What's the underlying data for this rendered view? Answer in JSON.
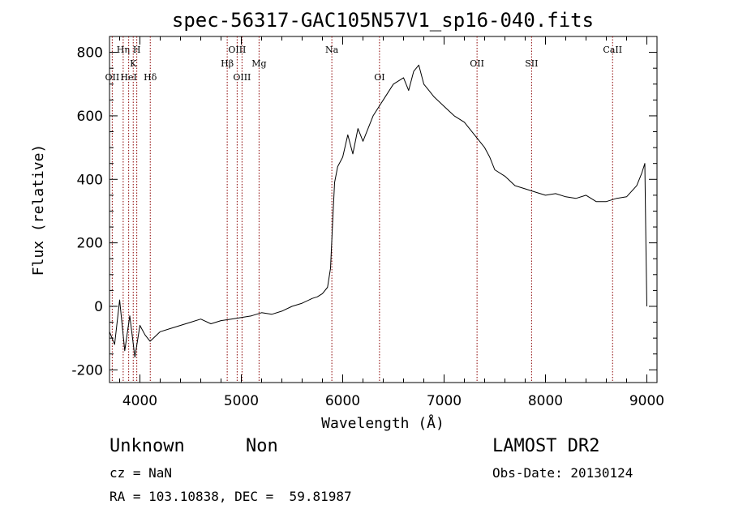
{
  "chart_data": {
    "type": "line",
    "title": "spec-56317-GAC105N57V1_sp16-040.fits",
    "xlabel": "Wavelength (Å)",
    "ylabel": "Flux (relative)",
    "xlim": [
      3700,
      9100
    ],
    "ylim": [
      -240,
      850
    ],
    "xticks": [
      4000,
      5000,
      6000,
      7000,
      8000,
      9000
    ],
    "yticks": [
      -200,
      0,
      200,
      400,
      600,
      800
    ],
    "grid": false,
    "legend": "none",
    "line_color": "#000000",
    "marker_color": "#8b0000",
    "series": [
      {
        "x": [
          3700,
          3750,
          3800,
          3850,
          3900,
          3950,
          4000,
          4050,
          4100,
          4200,
          4300,
          4400,
          4500,
          4600,
          4700,
          4800,
          4900,
          5000,
          5100,
          5200,
          5300,
          5400,
          5500,
          5600,
          5700,
          5750,
          5800,
          5850,
          5880,
          5900,
          5920,
          5950,
          6000,
          6050,
          6100,
          6150,
          6200,
          6300,
          6400,
          6500,
          6600,
          6650,
          6700,
          6750,
          6800,
          6850,
          6900,
          7000,
          7100,
          7200,
          7300,
          7400,
          7450,
          7500,
          7600,
          7700,
          7800,
          7900,
          8000,
          8100,
          8200,
          8300,
          8400,
          8500,
          8600,
          8700,
          8800,
          8900,
          8950,
          8980,
          8990,
          9000
        ],
        "values": [
          -80,
          -120,
          20,
          -140,
          -30,
          -160,
          -60,
          -90,
          -110,
          -80,
          -70,
          -60,
          -50,
          -40,
          -55,
          -45,
          -40,
          -35,
          -30,
          -20,
          -25,
          -15,
          0,
          10,
          25,
          30,
          40,
          60,
          120,
          260,
          390,
          440,
          470,
          540,
          480,
          560,
          520,
          600,
          650,
          700,
          720,
          680,
          740,
          760,
          700,
          680,
          660,
          630,
          600,
          580,
          540,
          500,
          470,
          430,
          410,
          380,
          370,
          360,
          350,
          355,
          345,
          340,
          350,
          330,
          330,
          340,
          345,
          380,
          420,
          450,
          200,
          0
        ]
      }
    ],
    "lines": [
      {
        "label": "OII",
        "x": 3727,
        "row": 3
      },
      {
        "label": "Hη",
        "x": 3835,
        "row": 1
      },
      {
        "label": "HeI",
        "x": 3889,
        "row": 3
      },
      {
        "label": "K",
        "x": 3934,
        "row": 2
      },
      {
        "label": "H",
        "x": 3969,
        "row": 1
      },
      {
        "label": "Hδ",
        "x": 4102,
        "row": 3
      },
      {
        "label": "Hβ",
        "x": 4861,
        "row": 2
      },
      {
        "label": "OIII",
        "x": 4959,
        "row": 1
      },
      {
        "label": "OIII",
        "x": 5007,
        "row": 3
      },
      {
        "label": "Mg",
        "x": 5175,
        "row": 2
      },
      {
        "label": "Na",
        "x": 5893,
        "row": 1
      },
      {
        "label": "OI",
        "x": 6363,
        "row": 3
      },
      {
        "label": "OII",
        "x": 7325,
        "row": 2
      },
      {
        "label": "SII",
        "x": 7863,
        "row": 2
      },
      {
        "label": "CaII",
        "x": 8662,
        "row": 1
      }
    ]
  },
  "info": {
    "class": "Unknown",
    "subclass": "Non",
    "survey": "LAMOST DR2",
    "cz": "cz = NaN",
    "obs_date": "Obs-Date: 20130124",
    "coords": "RA = 103.10838, DEC =  59.81987"
  }
}
